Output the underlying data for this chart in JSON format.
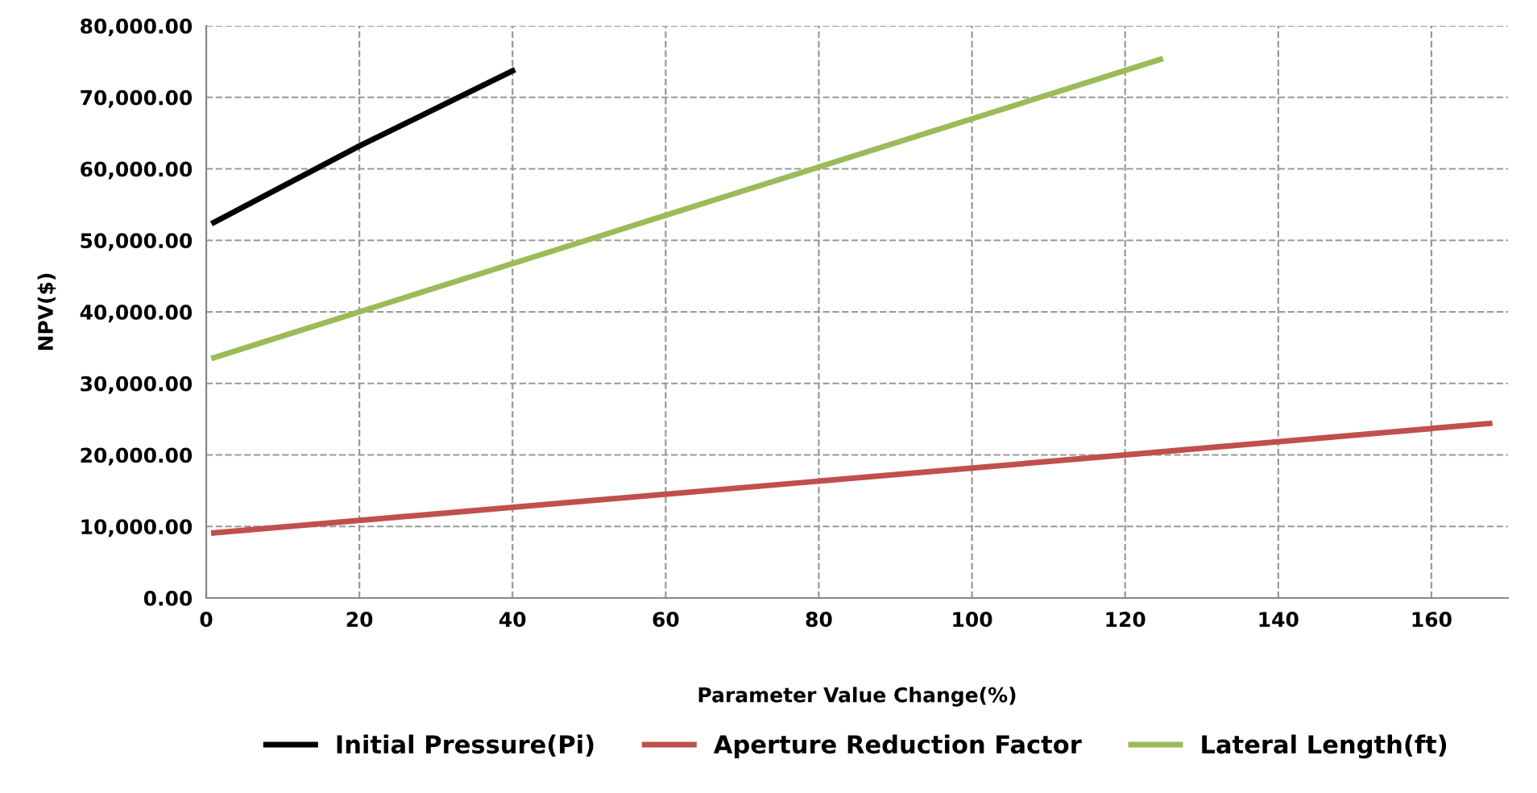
{
  "chart_data": {
    "type": "line",
    "xlabel": "Parameter Value Change(%)",
    "ylabel": "NPV($)",
    "series": [
      {
        "name": "Initial Pressure(Pi)",
        "color": "#000000",
        "x": [
          1,
          20,
          40
        ],
        "values": [
          52500,
          63200,
          73700
        ]
      },
      {
        "name": "Aperture Reduction Factor",
        "color": "#c0504d",
        "x": [
          1,
          120,
          167.6
        ],
        "values": [
          9100,
          20000,
          24400
        ]
      },
      {
        "name": "Lateral Length(ft)",
        "color": "#9bbb59",
        "x": [
          1,
          124.6
        ],
        "values": [
          33600,
          75300
        ]
      }
    ],
    "xlim": [
      0,
      170
    ],
    "xticks": [
      0,
      20,
      40,
      60,
      80,
      100,
      120,
      140,
      160
    ],
    "ylim": [
      0,
      80000
    ],
    "yticks": [
      {
        "value": 0,
        "label": "0.00"
      },
      {
        "value": 10000,
        "label": "10,000.00"
      },
      {
        "value": 20000,
        "label": "20,000.00"
      },
      {
        "value": 30000,
        "label": "30,000.00"
      },
      {
        "value": 40000,
        "label": "40,000.00"
      },
      {
        "value": 50000,
        "label": "50,000.00"
      },
      {
        "value": 60000,
        "label": "60,000.00"
      },
      {
        "value": 70000,
        "label": "70,000.00"
      },
      {
        "value": 80000,
        "label": "80,000.00"
      }
    ],
    "grid": true,
    "legend": "bottom",
    "marker": "none",
    "line_style": "solid"
  }
}
